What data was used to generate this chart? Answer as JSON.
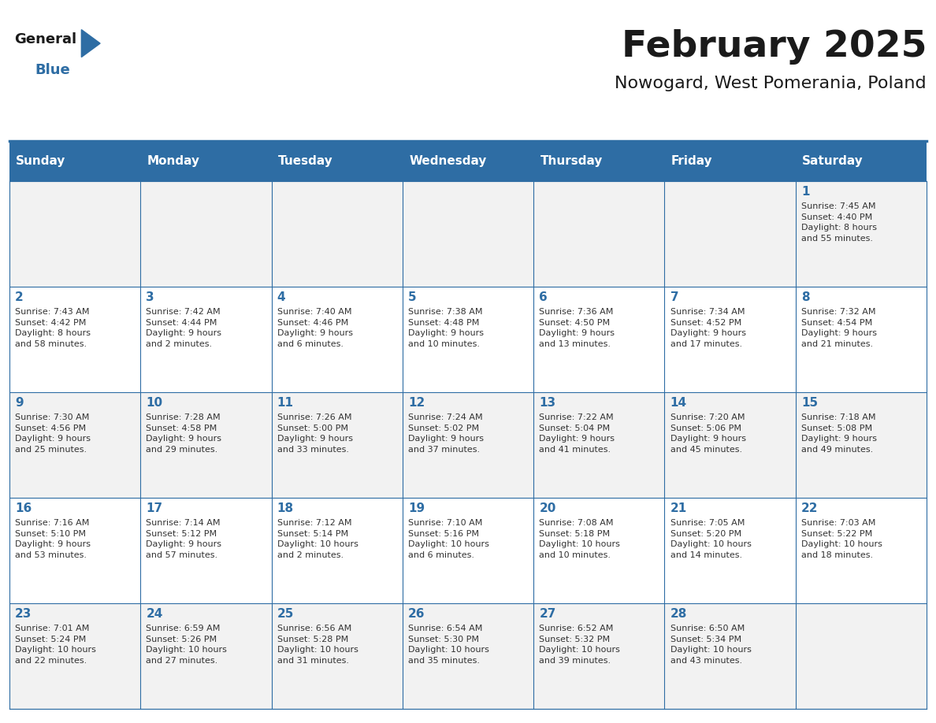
{
  "title": "February 2025",
  "subtitle": "Nowogard, West Pomerania, Poland",
  "header_bg_color": "#2E6DA4",
  "header_text_color": "#FFFFFF",
  "day_names": [
    "Sunday",
    "Monday",
    "Tuesday",
    "Wednesday",
    "Thursday",
    "Friday",
    "Saturday"
  ],
  "row_bg_colors": [
    "#F2F2F2",
    "#FFFFFF"
  ],
  "cell_border_color": "#2E6DA4",
  "title_color": "#1A1A1A",
  "subtitle_color": "#1A1A1A",
  "day_number_color": "#2E6DA4",
  "cell_text_color": "#333333",
  "logo_text_general_color": "#1A1A1A",
  "logo_text_blue_color": "#2E6DA4",
  "weeks": [
    [
      {
        "day": null,
        "info": null
      },
      {
        "day": null,
        "info": null
      },
      {
        "day": null,
        "info": null
      },
      {
        "day": null,
        "info": null
      },
      {
        "day": null,
        "info": null
      },
      {
        "day": null,
        "info": null
      },
      {
        "day": 1,
        "info": "Sunrise: 7:45 AM\nSunset: 4:40 PM\nDaylight: 8 hours\nand 55 minutes."
      }
    ],
    [
      {
        "day": 2,
        "info": "Sunrise: 7:43 AM\nSunset: 4:42 PM\nDaylight: 8 hours\nand 58 minutes."
      },
      {
        "day": 3,
        "info": "Sunrise: 7:42 AM\nSunset: 4:44 PM\nDaylight: 9 hours\nand 2 minutes."
      },
      {
        "day": 4,
        "info": "Sunrise: 7:40 AM\nSunset: 4:46 PM\nDaylight: 9 hours\nand 6 minutes."
      },
      {
        "day": 5,
        "info": "Sunrise: 7:38 AM\nSunset: 4:48 PM\nDaylight: 9 hours\nand 10 minutes."
      },
      {
        "day": 6,
        "info": "Sunrise: 7:36 AM\nSunset: 4:50 PM\nDaylight: 9 hours\nand 13 minutes."
      },
      {
        "day": 7,
        "info": "Sunrise: 7:34 AM\nSunset: 4:52 PM\nDaylight: 9 hours\nand 17 minutes."
      },
      {
        "day": 8,
        "info": "Sunrise: 7:32 AM\nSunset: 4:54 PM\nDaylight: 9 hours\nand 21 minutes."
      }
    ],
    [
      {
        "day": 9,
        "info": "Sunrise: 7:30 AM\nSunset: 4:56 PM\nDaylight: 9 hours\nand 25 minutes."
      },
      {
        "day": 10,
        "info": "Sunrise: 7:28 AM\nSunset: 4:58 PM\nDaylight: 9 hours\nand 29 minutes."
      },
      {
        "day": 11,
        "info": "Sunrise: 7:26 AM\nSunset: 5:00 PM\nDaylight: 9 hours\nand 33 minutes."
      },
      {
        "day": 12,
        "info": "Sunrise: 7:24 AM\nSunset: 5:02 PM\nDaylight: 9 hours\nand 37 minutes."
      },
      {
        "day": 13,
        "info": "Sunrise: 7:22 AM\nSunset: 5:04 PM\nDaylight: 9 hours\nand 41 minutes."
      },
      {
        "day": 14,
        "info": "Sunrise: 7:20 AM\nSunset: 5:06 PM\nDaylight: 9 hours\nand 45 minutes."
      },
      {
        "day": 15,
        "info": "Sunrise: 7:18 AM\nSunset: 5:08 PM\nDaylight: 9 hours\nand 49 minutes."
      }
    ],
    [
      {
        "day": 16,
        "info": "Sunrise: 7:16 AM\nSunset: 5:10 PM\nDaylight: 9 hours\nand 53 minutes."
      },
      {
        "day": 17,
        "info": "Sunrise: 7:14 AM\nSunset: 5:12 PM\nDaylight: 9 hours\nand 57 minutes."
      },
      {
        "day": 18,
        "info": "Sunrise: 7:12 AM\nSunset: 5:14 PM\nDaylight: 10 hours\nand 2 minutes."
      },
      {
        "day": 19,
        "info": "Sunrise: 7:10 AM\nSunset: 5:16 PM\nDaylight: 10 hours\nand 6 minutes."
      },
      {
        "day": 20,
        "info": "Sunrise: 7:08 AM\nSunset: 5:18 PM\nDaylight: 10 hours\nand 10 minutes."
      },
      {
        "day": 21,
        "info": "Sunrise: 7:05 AM\nSunset: 5:20 PM\nDaylight: 10 hours\nand 14 minutes."
      },
      {
        "day": 22,
        "info": "Sunrise: 7:03 AM\nSunset: 5:22 PM\nDaylight: 10 hours\nand 18 minutes."
      }
    ],
    [
      {
        "day": 23,
        "info": "Sunrise: 7:01 AM\nSunset: 5:24 PM\nDaylight: 10 hours\nand 22 minutes."
      },
      {
        "day": 24,
        "info": "Sunrise: 6:59 AM\nSunset: 5:26 PM\nDaylight: 10 hours\nand 27 minutes."
      },
      {
        "day": 25,
        "info": "Sunrise: 6:56 AM\nSunset: 5:28 PM\nDaylight: 10 hours\nand 31 minutes."
      },
      {
        "day": 26,
        "info": "Sunrise: 6:54 AM\nSunset: 5:30 PM\nDaylight: 10 hours\nand 35 minutes."
      },
      {
        "day": 27,
        "info": "Sunrise: 6:52 AM\nSunset: 5:32 PM\nDaylight: 10 hours\nand 39 minutes."
      },
      {
        "day": 28,
        "info": "Sunrise: 6:50 AM\nSunset: 5:34 PM\nDaylight: 10 hours\nand 43 minutes."
      },
      {
        "day": null,
        "info": null
      }
    ]
  ]
}
